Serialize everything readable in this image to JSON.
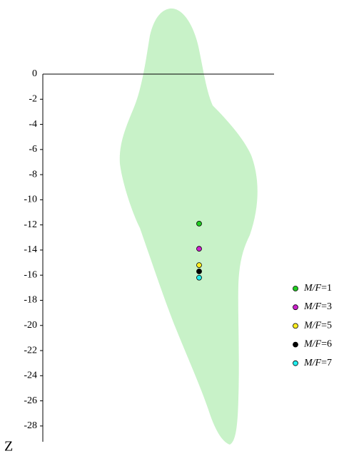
{
  "chart_data": {
    "type": "scatter",
    "y_label": "Z",
    "ylim": [
      -29,
      0
    ],
    "yticks": [
      0,
      -2,
      -4,
      -6,
      -8,
      -10,
      -12,
      -14,
      -16,
      -18,
      -20,
      -22,
      -24,
      -26,
      -28
    ],
    "series": [
      {
        "name": "M/F=1",
        "color": "#22cc22",
        "values": [
          -11.9
        ]
      },
      {
        "name": "M/F=3",
        "color": "#cc22cc",
        "values": [
          -13.9
        ]
      },
      {
        "name": "M/F=5",
        "color": "#ffee22",
        "values": [
          -15.2
        ]
      },
      {
        "name": "M/F=6",
        "color": "#000000",
        "values": [
          -15.7
        ]
      },
      {
        "name": "M/F=7",
        "color": "#22eeee",
        "values": [
          -16.2
        ]
      }
    ]
  }
}
